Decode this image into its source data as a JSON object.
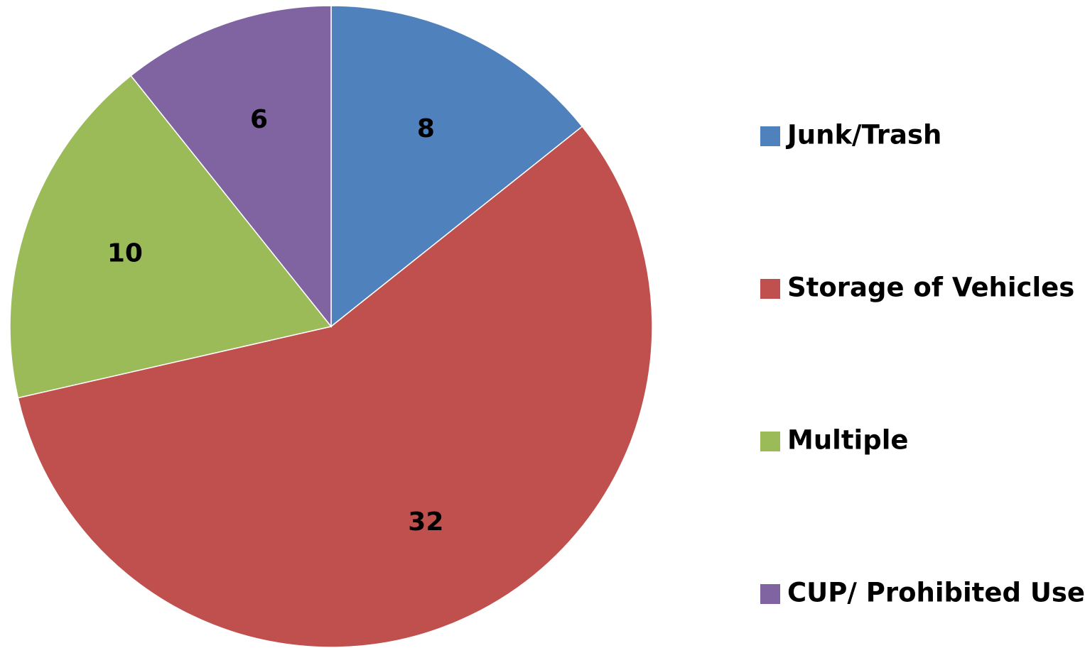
{
  "chart_data": {
    "type": "pie",
    "categories": [
      "Junk/Trash",
      "Storage of Vehicles",
      "Multiple",
      "CUP/ Prohibited Use"
    ],
    "values": [
      8,
      32,
      10,
      6
    ],
    "colors": [
      "#4f81bd",
      "#c0504d",
      "#9bbb59",
      "#8064a2"
    ],
    "legend": "right"
  }
}
